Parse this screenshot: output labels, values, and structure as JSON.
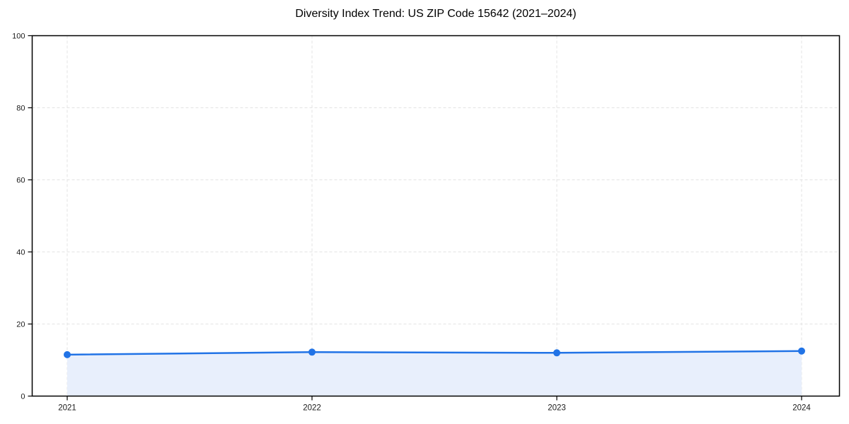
{
  "chart_data": {
    "type": "line",
    "title": "Diversity Index Trend: US ZIP Code 15642 (2021–2024)",
    "categories": [
      "2021",
      "2022",
      "2023",
      "2024"
    ],
    "values": [
      11.5,
      12.2,
      12.0,
      12.5
    ],
    "series_label": "Diversity Index",
    "xlabel": "",
    "ylabel": "",
    "ylim": [
      0,
      100
    ],
    "yticks": [
      0,
      20,
      40,
      60,
      80,
      100
    ],
    "grid": true,
    "grid_style": "dashed",
    "legend": false,
    "marker": "circle",
    "area_fill": true,
    "colors": {
      "line": "#2173e6",
      "marker": "#2173e6",
      "fill": "#e8effc",
      "grid": "#e3e3e3",
      "axis": "#000000",
      "tick_text": "#1a1a1a",
      "title_text": "#000000",
      "background": "#ffffff"
    }
  }
}
